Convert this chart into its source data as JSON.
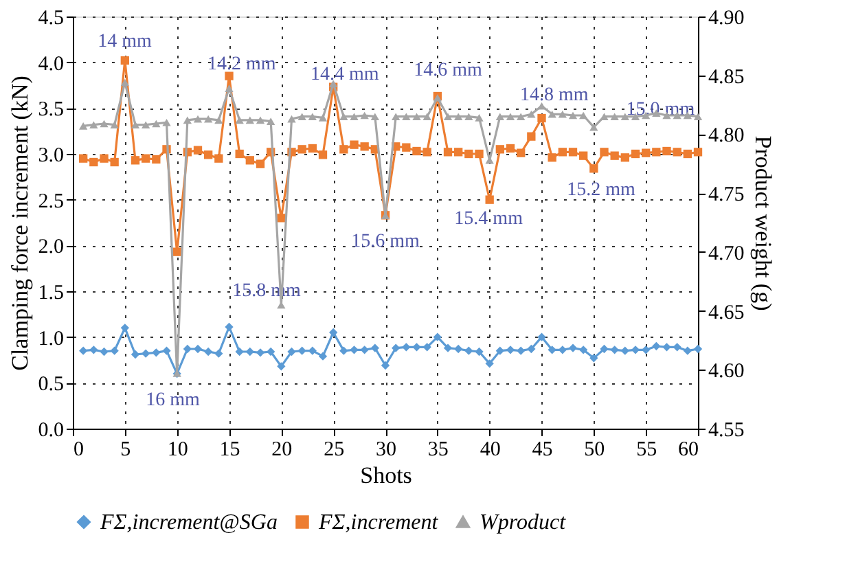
{
  "chart_data": {
    "type": "line",
    "xlabel": "Shots",
    "ylabel": "Clamping force increment (kN)",
    "y2label": "Product weight (g)",
    "x": [
      1,
      2,
      3,
      4,
      5,
      6,
      7,
      8,
      9,
      10,
      11,
      12,
      13,
      14,
      15,
      16,
      17,
      18,
      19,
      20,
      21,
      22,
      23,
      24,
      25,
      26,
      27,
      28,
      29,
      30,
      31,
      32,
      33,
      34,
      35,
      36,
      37,
      38,
      39,
      40,
      41,
      42,
      43,
      44,
      45,
      46,
      47,
      48,
      49,
      50,
      51,
      52,
      53,
      54,
      55,
      56,
      57,
      58,
      59,
      60
    ],
    "series": [
      {
        "name": "FΣ,increment@SGa",
        "color": "#5b9bd5",
        "marker": "diamond",
        "values": [
          0.85,
          0.86,
          0.84,
          0.85,
          1.1,
          0.81,
          0.82,
          0.83,
          0.85,
          0.6,
          0.87,
          0.87,
          0.84,
          0.82,
          1.11,
          0.84,
          0.84,
          0.83,
          0.84,
          0.68,
          0.84,
          0.85,
          0.85,
          0.79,
          1.05,
          0.85,
          0.86,
          0.86,
          0.88,
          0.69,
          0.88,
          0.89,
          0.89,
          0.89,
          1.0,
          0.88,
          0.87,
          0.85,
          0.84,
          0.71,
          0.85,
          0.86,
          0.85,
          0.87,
          1.0,
          0.86,
          0.86,
          0.88,
          0.86,
          0.77,
          0.87,
          0.86,
          0.85,
          0.86,
          0.86,
          0.9,
          0.89,
          0.89,
          0.85,
          0.87
        ]
      },
      {
        "name": "FΣ,increment",
        "color": "#ed7d31",
        "marker": "square",
        "values": [
          2.95,
          2.91,
          2.95,
          2.91,
          4.02,
          2.93,
          2.95,
          2.94,
          3.05,
          1.93,
          3.02,
          3.04,
          2.99,
          2.95,
          3.85,
          3.0,
          2.93,
          2.89,
          3.02,
          2.3,
          3.02,
          3.05,
          3.06,
          2.99,
          3.73,
          3.05,
          3.1,
          3.08,
          3.05,
          2.33,
          3.08,
          3.07,
          3.03,
          3.02,
          3.63,
          3.02,
          3.02,
          3.0,
          3.0,
          2.5,
          3.05,
          3.06,
          3.01,
          3.19,
          3.39,
          2.96,
          3.02,
          3.02,
          2.98,
          2.84,
          3.02,
          2.98,
          2.96,
          3.0,
          3.01,
          3.02,
          3.03,
          3.02,
          3.0,
          3.02
        ]
      },
      {
        "name": "Wproduct",
        "color": "#a5a5a5",
        "marker": "triangle",
        "axis": "y2",
        "values": [
          4.807,
          4.808,
          4.809,
          4.808,
          4.844,
          4.808,
          4.808,
          4.809,
          4.81,
          4.597,
          4.812,
          4.813,
          4.813,
          4.812,
          4.839,
          4.812,
          4.812,
          4.812,
          4.811,
          4.655,
          4.813,
          4.815,
          4.815,
          4.814,
          4.843,
          4.815,
          4.815,
          4.816,
          4.815,
          4.731,
          4.815,
          4.815,
          4.815,
          4.815,
          4.831,
          4.815,
          4.815,
          4.815,
          4.814,
          4.778,
          4.815,
          4.815,
          4.815,
          4.817,
          4.824,
          4.817,
          4.817,
          4.816,
          4.816,
          4.806,
          4.815,
          4.815,
          4.815,
          4.815,
          4.816,
          4.818,
          4.816,
          4.816,
          4.816,
          4.815
        ]
      }
    ],
    "xlim": [
      0,
      60
    ],
    "xticks": [
      0,
      5,
      10,
      15,
      20,
      25,
      30,
      35,
      40,
      45,
      50,
      55,
      60
    ],
    "ylim": [
      0,
      4.5
    ],
    "yticks": [
      {
        "value": 0,
        "label": "0.0"
      },
      0.5,
      {
        "value": 1,
        "label": "1.0"
      },
      1.5,
      {
        "value": 2,
        "label": "2.0"
      },
      2.5,
      {
        "value": 3,
        "label": "3.0"
      },
      3.5,
      {
        "value": 4,
        "label": "4.0"
      },
      4.5
    ],
    "y2lim": [
      4.55,
      4.9
    ],
    "y2ticks": [
      4.55,
      {
        "value": 4.6,
        "label": "4.60"
      },
      4.65,
      {
        "value": 4.7,
        "label": "4.70"
      },
      4.75,
      {
        "value": 4.8,
        "label": "4.80"
      },
      4.85,
      {
        "value": 4.9,
        "label": "4.90"
      }
    ],
    "grid": true,
    "legend": "bottom",
    "line_style": "solid",
    "annotations": [
      "14 mm",
      "14.2 mm",
      "14.4 mm",
      "14.6 mm",
      "14.8 mm",
      "15.0 mm",
      "15.2 mm",
      "15.4 mm",
      "15.6 mm",
      "15.8 mm",
      "16 mm"
    ]
  }
}
